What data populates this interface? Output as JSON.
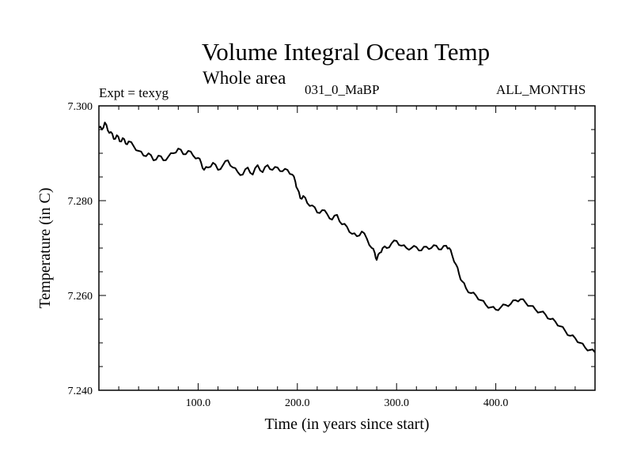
{
  "header": {
    "title": "Volume Integral Ocean Temp",
    "subtitle": "Whole area",
    "expt": "Expt = texyg",
    "period": "031_0_MaBP",
    "months": "ALL_MONTHS"
  },
  "chart_data": {
    "type": "line",
    "title": "Volume Integral Ocean Temp",
    "subtitle": "Whole area",
    "xlabel": "Time (in years since start)",
    "ylabel": "Temperature (in C)",
    "xlim": [
      0,
      500
    ],
    "ylim": [
      7.24,
      7.3
    ],
    "x_ticks": [
      100,
      200,
      300,
      400
    ],
    "x_tick_labels": [
      "100.0",
      "200.0",
      "300.0",
      "400.0"
    ],
    "y_ticks": [
      7.24,
      7.26,
      7.28,
      7.3
    ],
    "y_tick_labels": [
      "7.240",
      "7.260",
      "7.280",
      "7.300"
    ],
    "grid": false,
    "series": [
      {
        "name": "texyg",
        "color": "#000000",
        "x": [
          0,
          3,
          6,
          9,
          12,
          15,
          18,
          21,
          24,
          27,
          30,
          35,
          40,
          45,
          50,
          55,
          60,
          65,
          70,
          75,
          80,
          85,
          90,
          95,
          100,
          103,
          106,
          110,
          115,
          120,
          125,
          130,
          135,
          140,
          145,
          150,
          155,
          160,
          165,
          170,
          175,
          180,
          185,
          190,
          195,
          198,
          200,
          203,
          206,
          210,
          215,
          220,
          225,
          230,
          235,
          240,
          245,
          250,
          255,
          260,
          265,
          270,
          275,
          278,
          280,
          283,
          286,
          290,
          295,
          300,
          305,
          310,
          315,
          320,
          325,
          330,
          335,
          340,
          345,
          350,
          353,
          356,
          360,
          363,
          366,
          370,
          375,
          380,
          385,
          390,
          395,
          400,
          405,
          410,
          415,
          420,
          425,
          430,
          435,
          440,
          445,
          450,
          455,
          460,
          465,
          470,
          475,
          480,
          485,
          490,
          495,
          500
        ],
        "values": [
          7.2955,
          7.295,
          7.2965,
          7.2948,
          7.2945,
          7.293,
          7.2938,
          7.2925,
          7.2932,
          7.292,
          7.2925,
          7.2915,
          7.2905,
          7.2895,
          7.29,
          7.2885,
          7.2895,
          7.2885,
          7.2893,
          7.29,
          7.291,
          7.2898,
          7.2905,
          7.2895,
          7.289,
          7.288,
          7.2865,
          7.287,
          7.288,
          7.2865,
          7.2875,
          7.2885,
          7.287,
          7.286,
          7.2855,
          7.287,
          7.2855,
          7.2875,
          7.286,
          7.2875,
          7.2865,
          7.287,
          7.2862,
          7.2865,
          7.2855,
          7.284,
          7.2825,
          7.2805,
          7.281,
          7.2795,
          7.279,
          7.2775,
          7.278,
          7.2772,
          7.276,
          7.277,
          7.275,
          7.2745,
          7.273,
          7.2725,
          7.2735,
          7.272,
          7.27,
          7.269,
          7.2675,
          7.269,
          7.27,
          7.27,
          7.271,
          7.2715,
          7.2705,
          7.27,
          7.27,
          7.2702,
          7.2695,
          7.2703,
          7.27,
          7.2705,
          7.2697,
          7.2705,
          7.27,
          7.2685,
          7.2665,
          7.2645,
          7.263,
          7.2615,
          7.2605,
          7.26,
          7.259,
          7.258,
          7.2575,
          7.257,
          7.2575,
          7.258,
          7.2582,
          7.259,
          7.2592,
          7.2585,
          7.2578,
          7.257,
          7.2565,
          7.256,
          7.255,
          7.2545,
          7.2535,
          7.2525,
          7.2515,
          7.251,
          7.25,
          7.249,
          7.2485,
          7.248
        ]
      }
    ]
  }
}
